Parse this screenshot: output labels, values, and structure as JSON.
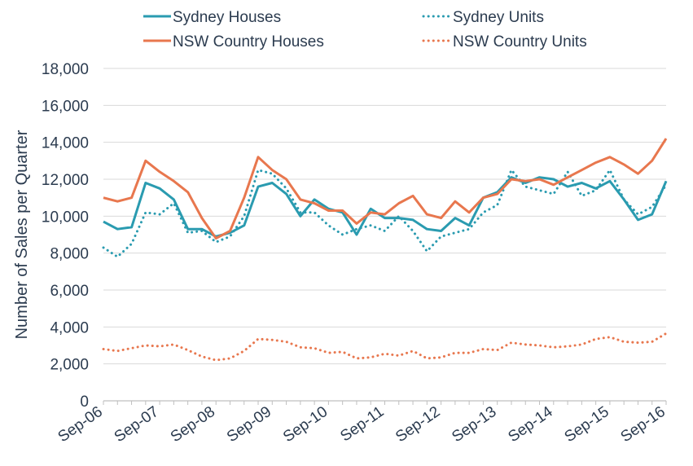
{
  "chart_data": {
    "type": "line",
    "title": "",
    "xlabel": "",
    "ylabel": "Number of Sales per Quarter",
    "ylim": [
      0,
      18000
    ],
    "yticks": [
      0,
      2000,
      4000,
      6000,
      8000,
      10000,
      12000,
      14000,
      16000,
      18000
    ],
    "ytick_labels": [
      "0",
      "2,000",
      "4,000",
      "6,000",
      "8,000",
      "10,000",
      "12,000",
      "14,000",
      "16,000",
      "18,000"
    ],
    "x_quarters": 41,
    "xtick_labels": [
      "Sep-06",
      "Sep-07",
      "Sep-08",
      "Sep-09",
      "Sep-10",
      "Sep-11",
      "Sep-12",
      "Sep-13",
      "Sep-14",
      "Sep-15",
      "Sep-16"
    ],
    "xtick_positions": [
      0,
      4,
      8,
      12,
      16,
      20,
      24,
      28,
      32,
      36,
      40
    ],
    "legend_position": "top",
    "series": [
      {
        "name": "Sydney Houses",
        "color": "#2a9bb0",
        "dash": "solid",
        "values": [
          9700,
          9300,
          9400,
          11800,
          11500,
          10900,
          9300,
          9300,
          8900,
          9100,
          9500,
          11600,
          11800,
          11200,
          10000,
          10900,
          10400,
          10200,
          9000,
          10400,
          9900,
          9900,
          9800,
          9300,
          9200,
          9900,
          9500,
          11000,
          11300,
          12100,
          11800,
          12100,
          12000,
          11600,
          11800,
          11500,
          11900,
          10900,
          9800,
          10100,
          11900
        ]
      },
      {
        "name": "Sydney Units",
        "color": "#2a9bb0",
        "dash": "dotted",
        "values": [
          8300,
          7800,
          8500,
          10200,
          10100,
          10700,
          9100,
          9200,
          8600,
          8900,
          10000,
          12500,
          12300,
          11500,
          10200,
          10200,
          9500,
          9000,
          9300,
          9500,
          9200,
          10000,
          9200,
          8100,
          8900,
          9100,
          9300,
          10200,
          10600,
          12500,
          11600,
          11400,
          11200,
          12400,
          11100,
          11400,
          12500,
          10900,
          10100,
          10500,
          11700
        ]
      },
      {
        "name": "NSW Country Houses",
        "color": "#e8774e",
        "dash": "solid",
        "values": [
          11000,
          10800,
          11000,
          13000,
          12400,
          11900,
          11300,
          9900,
          8800,
          9200,
          11000,
          13200,
          12500,
          12000,
          10900,
          10700,
          10300,
          10300,
          9600,
          10200,
          10100,
          10700,
          11100,
          10100,
          9900,
          10800,
          10200,
          11000,
          11200,
          12000,
          11900,
          12000,
          11700,
          12100,
          12500,
          12900,
          13200,
          12800,
          12300,
          13000,
          14200
        ]
      },
      {
        "name": "NSW Country Units",
        "color": "#e8774e",
        "dash": "dotted",
        "values": [
          2800,
          2700,
          2850,
          3000,
          2950,
          3050,
          2750,
          2400,
          2200,
          2300,
          2700,
          3350,
          3300,
          3200,
          2900,
          2850,
          2600,
          2650,
          2300,
          2350,
          2550,
          2450,
          2700,
          2300,
          2350,
          2600,
          2600,
          2800,
          2750,
          3150,
          3050,
          3000,
          2900,
          2950,
          3050,
          3350,
          3450,
          3200,
          3150,
          3200,
          3650
        ]
      }
    ]
  }
}
